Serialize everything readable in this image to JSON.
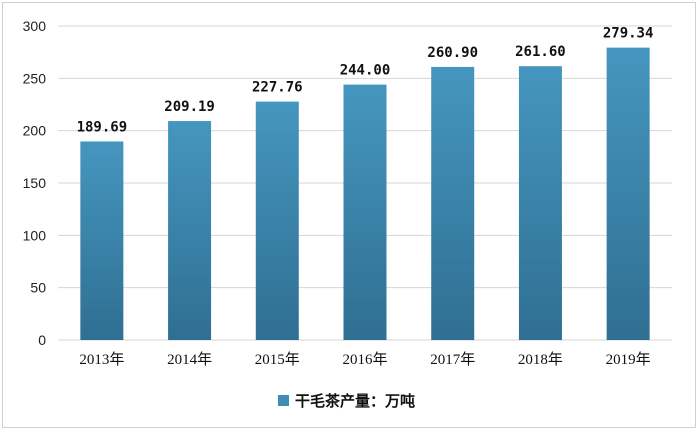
{
  "chart_data": {
    "type": "bar",
    "categories": [
      "2013年",
      "2014年",
      "2015年",
      "2016年",
      "2017年",
      "2018年",
      "2019年"
    ],
    "values": [
      189.69,
      209.19,
      227.76,
      244.0,
      260.9,
      261.6,
      279.34
    ],
    "value_labels": [
      "189.69",
      "209.19",
      "227.76",
      "244.00",
      "260.90",
      "261.60",
      "279.34"
    ],
    "series": [
      {
        "name": "干毛茶产量：万吨",
        "values": [
          189.69,
          209.19,
          227.76,
          244.0,
          260.9,
          261.6,
          279.34
        ]
      }
    ],
    "yticks": [
      "0",
      "50",
      "100",
      "150",
      "200",
      "250",
      "300"
    ],
    "ylim": [
      0,
      300
    ],
    "grid": true,
    "legend_position": "bottom",
    "bar_color": "#3f8db5",
    "bar_color_dark": "#2f6f92"
  },
  "legend": {
    "label": "干毛茶产量：万吨"
  }
}
